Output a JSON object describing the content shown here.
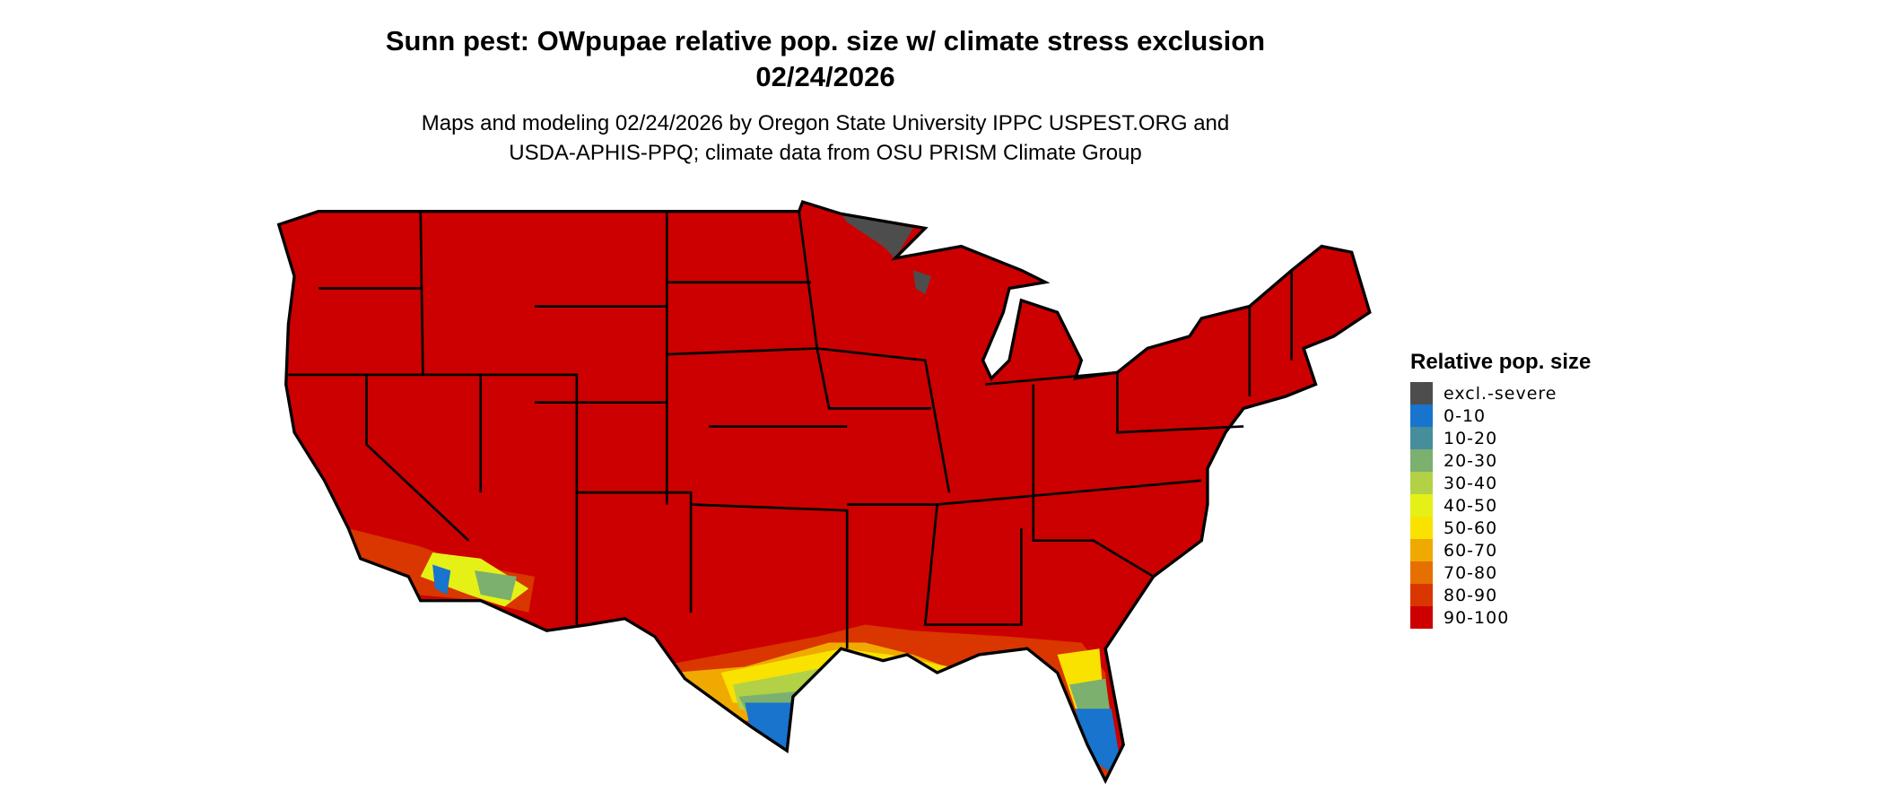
{
  "title": {
    "line1": "Sunn pest: OWpupae relative pop. size w/ climate stress exclusion",
    "line2": "02/24/2026"
  },
  "subtitle": {
    "line1": "Maps and modeling 02/24/2026 by Oregon State University IPPC USPEST.ORG and",
    "line2": "USDA-APHIS-PPQ; climate data from OSU PRISM Climate Group"
  },
  "legend": {
    "title": "Relative pop. size",
    "items": [
      {
        "label": "excl.-severe",
        "color": "#4d4d4d"
      },
      {
        "label": "0-10",
        "color": "#1874cd"
      },
      {
        "label": "10-20",
        "color": "#468e9c"
      },
      {
        "label": "20-30",
        "color": "#7cb06f"
      },
      {
        "label": "30-40",
        "color": "#b2d147"
      },
      {
        "label": "40-50",
        "color": "#e5f016"
      },
      {
        "label": "50-60",
        "color": "#f9e200"
      },
      {
        "label": "60-70",
        "color": "#f0a900"
      },
      {
        "label": "70-80",
        "color": "#e57000"
      },
      {
        "label": "80-90",
        "color": "#d93600"
      },
      {
        "label": "90-100",
        "color": "#cc0000"
      }
    ]
  },
  "map": {
    "region": "Contiguous United States",
    "dominant_class": "90-100",
    "lower_classes_region": "Gulf Coast, South Texas, Florida, southern Arizona/California",
    "excluded_region": "northeastern Minnesota, northern Wisconsin"
  }
}
